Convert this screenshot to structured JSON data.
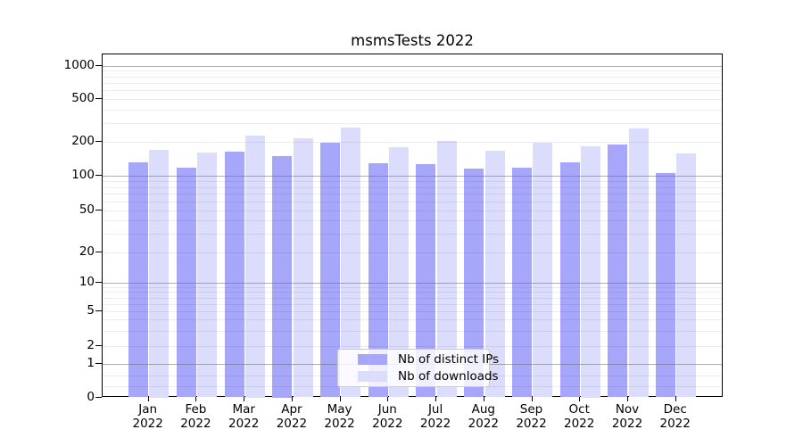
{
  "title": "msmsTests 2022",
  "colors": {
    "ips_bar": "#a6a6fa",
    "downloads_bar": "#dcdcfc",
    "major_grid": "#6e6e6e",
    "minor_grid": "#ececec",
    "axis": "#000000",
    "legend_border": "#cccccc"
  },
  "y_axis": {
    "tick_labels": [
      "1000",
      "500",
      "200",
      "100",
      "50",
      "20",
      "10",
      "5",
      "2",
      "1",
      "0"
    ],
    "tick_values": [
      1000,
      500,
      200,
      100,
      50,
      20,
      10,
      5,
      2,
      1,
      0
    ]
  },
  "x_axis": {
    "months": [
      "Jan",
      "Feb",
      "Mar",
      "Apr",
      "May",
      "Jun",
      "Jul",
      "Aug",
      "Sep",
      "Oct",
      "Nov",
      "Dec"
    ],
    "year_line": "2022"
  },
  "legend": {
    "items": [
      {
        "key": "ips",
        "label": "Nb of distinct IPs"
      },
      {
        "key": "downloads",
        "label": "Nb of downloads"
      }
    ]
  },
  "chart_data": {
    "type": "bar",
    "title": "msmsTests 2022",
    "categories": [
      "Jan 2022",
      "Feb 2022",
      "Mar 2022",
      "Apr 2022",
      "May 2022",
      "Jun 2022",
      "Jul 2022",
      "Aug 2022",
      "Sep 2022",
      "Oct 2022",
      "Nov 2022",
      "Dec 2022"
    ],
    "series": [
      {
        "name": "Nb of distinct IPs",
        "values": [
          130,
          117,
          162,
          150,
          196,
          128,
          127,
          116,
          118,
          130,
          187,
          106
        ]
      },
      {
        "name": "Nb of downloads",
        "values": [
          170,
          159,
          229,
          215,
          272,
          179,
          203,
          166,
          194,
          181,
          265,
          158
        ]
      }
    ],
    "ylabel": "",
    "xlabel": "",
    "yscale": "log-like (0,1,2,5,10,20,50,100,200,500,1000)",
    "ylim": [
      0,
      1000
    ],
    "grid": true,
    "legend_position": "inside lower center"
  }
}
